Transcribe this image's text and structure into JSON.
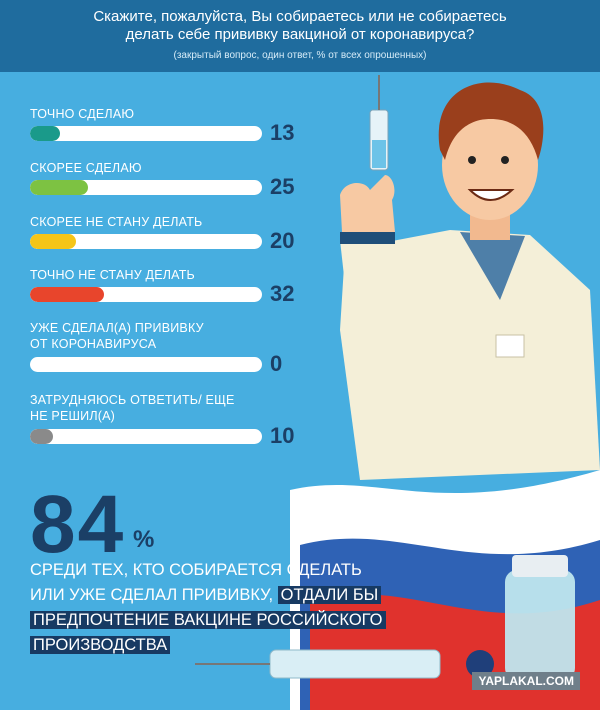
{
  "chart_data": {
    "type": "bar",
    "orientation": "horizontal",
    "title": "Скажите, пожалуйста, Вы собираетесь или не собираетесь\nделать себе прививку вакциной от коронавируса?",
    "subtitle": "(закрытый вопрос, один ответ, % от всех опрошенных)",
    "categories": [
      "ТОЧНО СДЕЛАЮ",
      "СКОРЕЕ СДЕЛАЮ",
      "СКОРЕЕ НЕ СТАНУ ДЕЛАТЬ",
      "ТОЧНО НЕ СТАНУ ДЕЛАТЬ",
      "УЖЕ СДЕЛАЛ(А) ПРИВИВКУ\nОТ КОРОНАВИРУСА",
      "ЗАТРУДНЯЮСЬ ОТВЕТИТЬ/ ЕЩЕ\nНЕ РЕШИЛ(А)"
    ],
    "values": [
      13,
      25,
      20,
      32,
      0,
      10
    ],
    "colors": [
      "#1a9a8a",
      "#7dc242",
      "#f5c518",
      "#e8452c",
      null,
      "#8a8a8a"
    ],
    "xlim": [
      0,
      100
    ],
    "stat": {
      "value": 84,
      "unit": "%",
      "text": [
        [
          {
            "text": "СРЕДИ ТЕХ, КТО СОБИРАЕТСЯ СДЕЛАТЬ",
            "highlight": false
          }
        ],
        [
          {
            "text": "ИЛИ УЖЕ СДЕЛАЛ ПРИВИВКУ,",
            "highlight": false
          },
          {
            "text": "ОТДАЛИ БЫ",
            "highlight": true
          }
        ],
        [
          {
            "text": "ПРЕДПОЧТЕНИЕ ВАКЦИНЕ РОССИЙСКОГО",
            "highlight": true
          }
        ],
        [
          {
            "text": "ПРОИЗВОДСТВА",
            "highlight": true
          }
        ]
      ]
    },
    "watermark": "YAPLAKAL.COM"
  }
}
